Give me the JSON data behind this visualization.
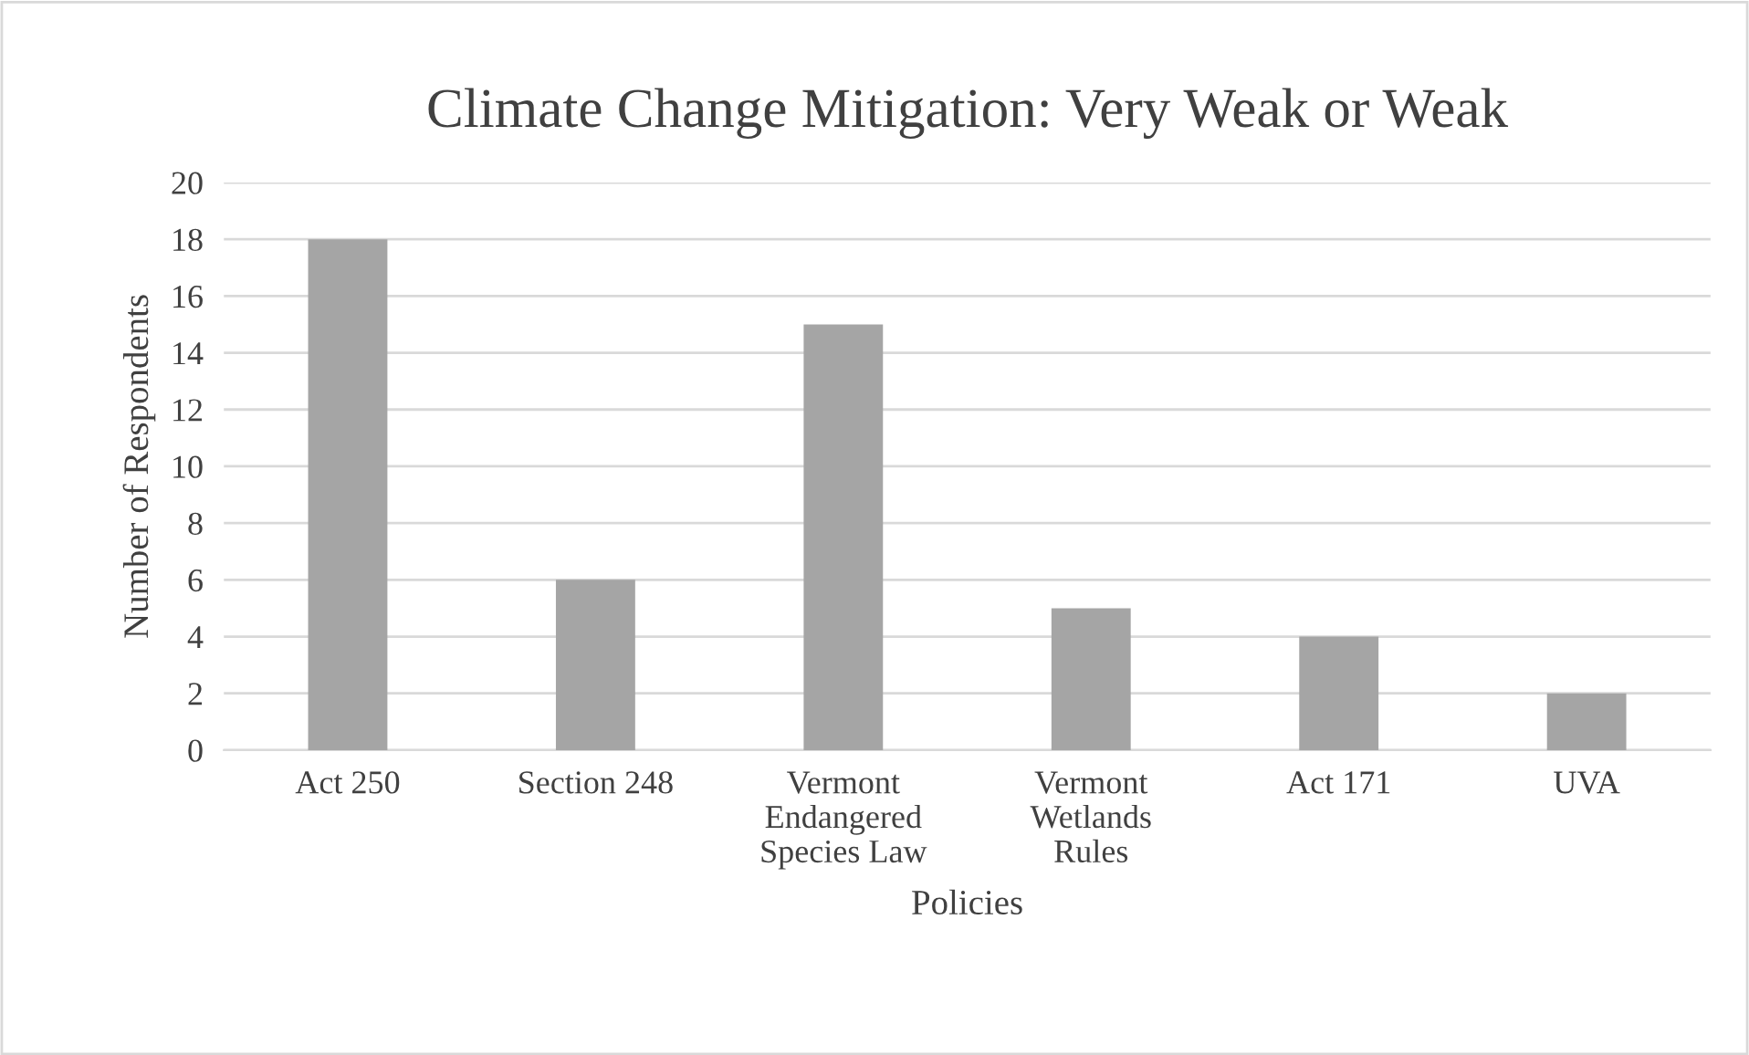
{
  "chart_data": {
    "type": "bar",
    "title": "Climate Change Mitigation: Very Weak or Weak",
    "xlabel": "Policies",
    "ylabel": "Number of Respondents",
    "categories": [
      "Act 250",
      "Section 248",
      "Vermont\nEndangered\nSpecies Law",
      "Vermont\nWetlands\nRules",
      "Act 171",
      "UVA"
    ],
    "values": [
      18,
      6,
      15,
      5,
      4,
      2
    ],
    "color": "#a5a5a5",
    "ylim": [
      0,
      20
    ],
    "yticks": [
      0,
      2,
      4,
      6,
      8,
      10,
      12,
      14,
      16,
      18,
      20
    ],
    "grid": "y"
  }
}
